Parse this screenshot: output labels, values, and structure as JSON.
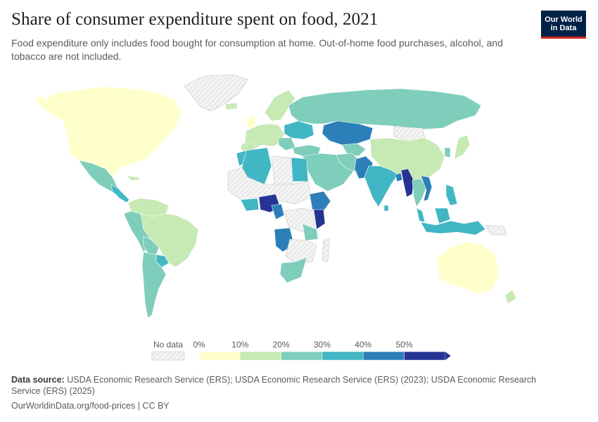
{
  "header": {
    "title": "Share of consumer expenditure spent on food, 2021",
    "subtitle": "Food expenditure only includes food bought for consumption at home. Out-of-home food purchases, alcohol, and tobacco are not included."
  },
  "logo": {
    "line1": "Our World",
    "line2": "in Data"
  },
  "legend": {
    "no_data_label": "No data",
    "bins": [
      {
        "label": "0%",
        "color": "#ffffcc"
      },
      {
        "label": "10%",
        "color": "#c7e9b4"
      },
      {
        "label": "20%",
        "color": "#7fcdbb"
      },
      {
        "label": "30%",
        "color": "#41b6c4"
      },
      {
        "label": "40%",
        "color": "#2c7fb8"
      },
      {
        "label": "50%",
        "color": "#253494"
      }
    ]
  },
  "map_data": {
    "metric": "Share of consumer expenditure spent on food",
    "year": 2021,
    "regions": [
      {
        "name": "North America",
        "bin": "0-10%"
      },
      {
        "name": "Mexico / Central America",
        "bin": "20-30%"
      },
      {
        "name": "Brazil",
        "bin": "10-20%"
      },
      {
        "name": "Andean South America",
        "bin": "20-30%"
      },
      {
        "name": "Southern Cone",
        "bin": "20-30%"
      },
      {
        "name": "Paraguay",
        "bin": "30-40%"
      },
      {
        "name": "Western Europe",
        "bin": "10-20%"
      },
      {
        "name": "Eastern Europe",
        "bin": "30-40%"
      },
      {
        "name": "Russia",
        "bin": "20-30%"
      },
      {
        "name": "Kazakhstan",
        "bin": "40-50%"
      },
      {
        "name": "China",
        "bin": "10-20%"
      },
      {
        "name": "Middle East",
        "bin": "20-30%"
      },
      {
        "name": "North Africa",
        "bin": "30-40%"
      },
      {
        "name": "South Asia",
        "bin": "30-40%"
      },
      {
        "name": "Pakistan",
        "bin": "40-50%"
      },
      {
        "name": "Myanmar",
        "bin": "50%+"
      },
      {
        "name": "Vietnam",
        "bin": "40-50%"
      },
      {
        "name": "Nigeria",
        "bin": "50%+"
      },
      {
        "name": "Kenya",
        "bin": "50%+"
      },
      {
        "name": "Ethiopia",
        "bin": "40-50%"
      },
      {
        "name": "Angola",
        "bin": "40-50%"
      },
      {
        "name": "South Africa",
        "bin": "20-30%"
      },
      {
        "name": "Indonesia",
        "bin": "30-40%"
      },
      {
        "name": "Philippines",
        "bin": "30-40%"
      },
      {
        "name": "Australia",
        "bin": "0-10%"
      },
      {
        "name": "New Zealand",
        "bin": "10-20%"
      },
      {
        "name": "Japan",
        "bin": "10-20%"
      },
      {
        "name": "Greenland",
        "bin": "No data"
      }
    ]
  },
  "footer": {
    "source_label": "Data source:",
    "source_text": "USDA Economic Research Service (ERS); USDA Economic Research Service (ERS) (2023); USDA Economic Research Service (ERS) (2025)",
    "url": "OurWorldinData.org/food-prices | CC BY"
  }
}
